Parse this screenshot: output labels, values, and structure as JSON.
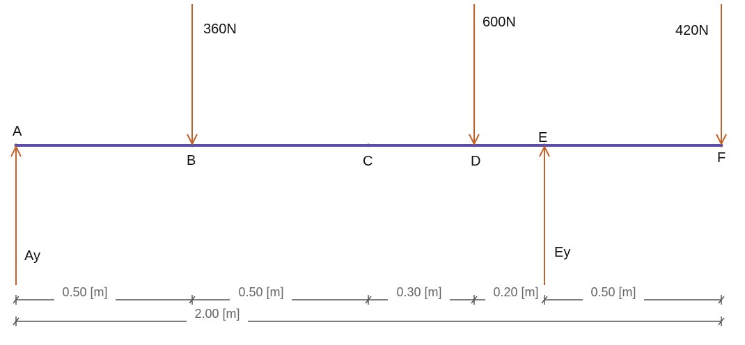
{
  "colors": {
    "beam": "#5b4ea3",
    "force": "#c0622a",
    "dimension": "#555555",
    "text": "#111111",
    "dim_text": "#666666"
  },
  "beam": {
    "points": [
      {
        "name": "A",
        "position_m": 0.0
      },
      {
        "name": "B",
        "position_m": 0.5
      },
      {
        "name": "C",
        "position_m": 1.0
      },
      {
        "name": "D",
        "position_m": 1.3
      },
      {
        "name": "E",
        "position_m": 1.5
      },
      {
        "name": "F",
        "position_m": 2.0
      }
    ]
  },
  "loads": [
    {
      "label": "360N",
      "point": "B",
      "direction": "down"
    },
    {
      "label": "600N",
      "point": "D",
      "direction": "down"
    },
    {
      "label": "420N",
      "point": "F",
      "direction": "down"
    }
  ],
  "reactions": [
    {
      "label": "Ay",
      "point": "A",
      "direction": "up"
    },
    {
      "label": "Ey",
      "point": "E",
      "direction": "up"
    }
  ],
  "dimensions": {
    "segments": [
      "0.50 [m]",
      "0.50 [m]",
      "0.30 [m]",
      "0.20 [m]",
      "0.50 [m]"
    ],
    "total": "2.00 [m]"
  }
}
